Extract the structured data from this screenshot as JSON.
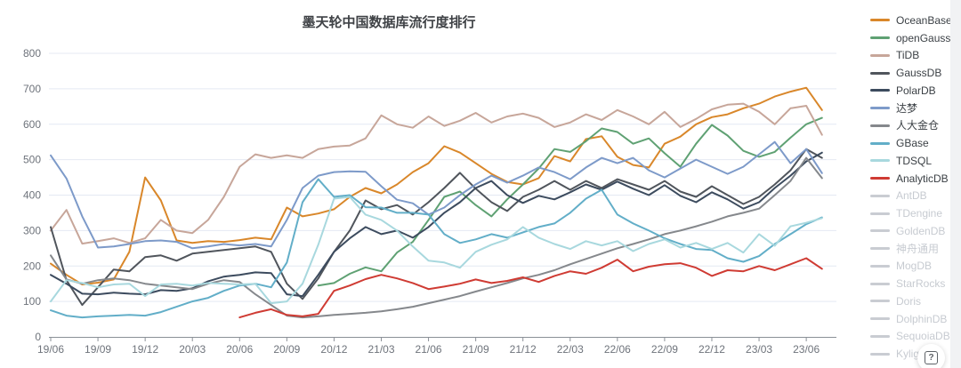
{
  "page": {
    "title": "墨天轮中国数据库流行度排行"
  },
  "help": {
    "icon_label": "?"
  },
  "chart_data": {
    "type": "line",
    "title": "墨天轮中国数据库流行度排行",
    "xlabel": "",
    "ylabel": "",
    "ylim": [
      0,
      800
    ],
    "y_ticks": [
      0,
      100,
      200,
      300,
      400,
      500,
      600,
      700,
      800
    ],
    "grid": true,
    "legend_position": "right",
    "x_monthly_start": "19/06",
    "x_monthly_end": "23/07",
    "x_tick_labels": [
      "19/06",
      "19/09",
      "19/12",
      "20/03",
      "20/06",
      "20/09",
      "20/12",
      "21/03",
      "21/06",
      "21/09",
      "21/12",
      "22/03",
      "22/06",
      "22/09",
      "22/12",
      "23/03",
      "23/06"
    ],
    "months_between_ticks": 3,
    "series": [
      {
        "name": "OceanBase",
        "color": "#d9872a",
        "values": [
          207,
          175,
          148,
          153,
          162,
          240,
          450,
          385,
          272,
          265,
          270,
          268,
          273,
          280,
          275,
          365,
          340,
          348,
          360,
          395,
          420,
          405,
          430,
          465,
          490,
          538,
          520,
          490,
          460,
          437,
          430,
          448,
          510,
          495,
          558,
          566,
          508,
          485,
          478,
          545,
          565,
          600,
          620,
          628,
          645,
          658,
          678,
          692,
          703,
          640
        ]
      },
      {
        "name": "openGauss",
        "color": "#5fa173",
        "values": [
          null,
          null,
          null,
          null,
          null,
          null,
          null,
          null,
          null,
          null,
          null,
          null,
          null,
          null,
          null,
          null,
          null,
          145,
          152,
          178,
          196,
          185,
          238,
          268,
          330,
          395,
          410,
          372,
          340,
          388,
          430,
          475,
          530,
          522,
          552,
          588,
          578,
          545,
          560,
          518,
          480,
          545,
          598,
          568,
          525,
          508,
          522,
          562,
          600,
          618
        ]
      },
      {
        "name": "TiDB",
        "color": "#c7a69a",
        "values": [
          300,
          358,
          263,
          270,
          278,
          265,
          278,
          330,
          300,
          293,
          330,
          395,
          480,
          515,
          505,
          512,
          505,
          530,
          537,
          540,
          560,
          625,
          600,
          590,
          622,
          595,
          610,
          632,
          605,
          622,
          630,
          618,
          592,
          605,
          628,
          612,
          640,
          622,
          600,
          635,
          592,
          615,
          642,
          655,
          658,
          635,
          600,
          645,
          652,
          570
        ]
      },
      {
        "name": "GaussDB",
        "color": "#50555c",
        "values": [
          310,
          160,
          90,
          140,
          190,
          185,
          225,
          230,
          215,
          235,
          240,
          245,
          250,
          255,
          240,
          150,
          107,
          165,
          240,
          300,
          385,
          360,
          372,
          345,
          380,
          420,
          463,
          418,
          380,
          355,
          395,
          415,
          440,
          415,
          440,
          420,
          445,
          430,
          415,
          440,
          410,
          395,
          425,
          400,
          375,
          395,
          430,
          470,
          530,
          505
        ]
      },
      {
        "name": "PolarDB",
        "color": "#3c4b5e",
        "values": [
          175,
          150,
          122,
          120,
          125,
          122,
          120,
          132,
          130,
          137,
          157,
          170,
          175,
          182,
          180,
          120,
          115,
          175,
          240,
          278,
          310,
          290,
          300,
          280,
          310,
          350,
          380,
          420,
          440,
          400,
          378,
          398,
          388,
          408,
          430,
          415,
          438,
          418,
          400,
          428,
          398,
          380,
          408,
          388,
          362,
          380,
          420,
          455,
          495,
          520
        ]
      },
      {
        "name": "达梦",
        "color": "#7d9ac9",
        "values": [
          512,
          447,
          340,
          252,
          255,
          262,
          270,
          272,
          268,
          250,
          255,
          262,
          258,
          262,
          255,
          330,
          420,
          455,
          465,
          467,
          466,
          425,
          387,
          377,
          345,
          365,
          400,
          430,
          455,
          435,
          455,
          478,
          465,
          445,
          478,
          505,
          490,
          505,
          470,
          450,
          475,
          500,
          480,
          460,
          480,
          515,
          550,
          490,
          530,
          462
        ]
      },
      {
        "name": "人大金仓",
        "color": "#85888c",
        "values": [
          230,
          162,
          150,
          160,
          165,
          160,
          150,
          145,
          140,
          135,
          150,
          160,
          155,
          120,
          90,
          60,
          55,
          58,
          62,
          65,
          68,
          72,
          78,
          85,
          95,
          105,
          115,
          128,
          140,
          152,
          165,
          175,
          188,
          205,
          220,
          235,
          250,
          262,
          275,
          290,
          300,
          312,
          325,
          340,
          350,
          362,
          400,
          440,
          505,
          448
        ]
      },
      {
        "name": "GBase",
        "color": "#62aec8",
        "values": [
          75,
          60,
          55,
          58,
          60,
          62,
          60,
          70,
          85,
          100,
          110,
          130,
          145,
          150,
          140,
          210,
          380,
          445,
          395,
          400,
          366,
          365,
          350,
          350,
          345,
          290,
          265,
          275,
          290,
          280,
          295,
          310,
          320,
          350,
          390,
          415,
          345,
          320,
          300,
          278,
          262,
          248,
          245,
          222,
          212,
          228,
          262,
          290,
          318,
          337
        ]
      },
      {
        "name": "TDSQL",
        "color": "#a8d8de",
        "values": [
          100,
          160,
          152,
          140,
          148,
          150,
          115,
          148,
          150,
          145,
          152,
          150,
          148,
          150,
          95,
          100,
          150,
          260,
          390,
          395,
          345,
          330,
          300,
          255,
          215,
          210,
          195,
          240,
          260,
          275,
          310,
          280,
          262,
          248,
          270,
          258,
          270,
          242,
          262,
          275,
          252,
          265,
          248,
          265,
          238,
          290,
          257,
          312,
          322,
          335
        ]
      },
      {
        "name": "AnalyticDB",
        "color": "#cf3b33",
        "values": [
          null,
          null,
          null,
          null,
          null,
          null,
          null,
          null,
          null,
          null,
          null,
          null,
          55,
          68,
          78,
          62,
          58,
          65,
          130,
          145,
          163,
          175,
          165,
          152,
          135,
          142,
          150,
          162,
          152,
          158,
          168,
          155,
          172,
          185,
          178,
          195,
          218,
          185,
          198,
          205,
          208,
          195,
          172,
          188,
          185,
          200,
          188,
          205,
          222,
          192
        ]
      }
    ],
    "disabled_series": [
      "AntDB",
      "TDengine",
      "GoldenDB",
      "神舟通用",
      "MogDB",
      "StarRocks",
      "Doris",
      "DolphinDB",
      "SequoiaDB",
      "Kyligence"
    ],
    "colors": {
      "disabled_legend": "#c9ccd2",
      "grid_line": "#e4e9f3",
      "axis_line": "#8b9097",
      "axis_label": "#6e737b"
    }
  }
}
